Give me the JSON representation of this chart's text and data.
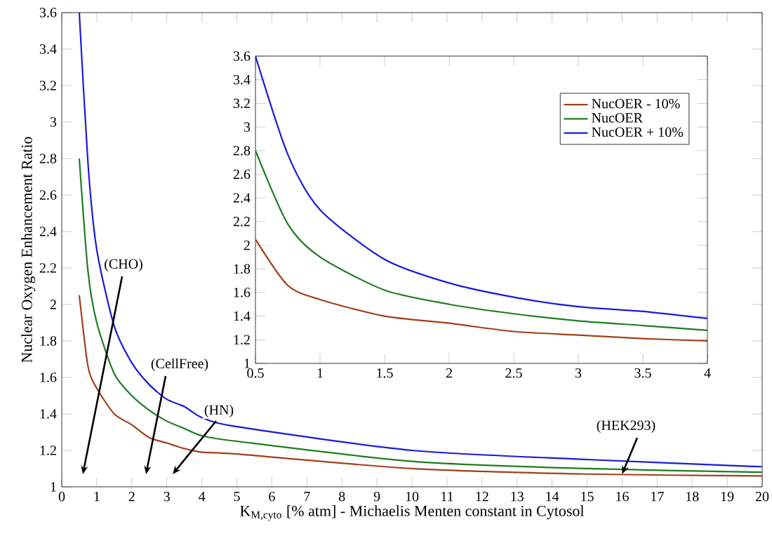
{
  "chart_data": [
    {
      "type": "line",
      "xlabel": "K$_{M,cyto}$ [% atm] - Michaelis Menten constant in Cytosol",
      "ylabel": "Nuclear Oxygen Enhancement Ratio",
      "xlim": [
        0,
        20
      ],
      "ylim": [
        1,
        3.6
      ],
      "xticks": [
        0,
        1,
        2,
        3,
        4,
        5,
        6,
        7,
        8,
        9,
        10,
        11,
        12,
        13,
        14,
        15,
        16,
        17,
        18,
        19,
        20
      ],
      "yticks": [
        1,
        1.2,
        1.4,
        1.6,
        1.8,
        2,
        2.2,
        2.4,
        2.6,
        2.8,
        3,
        3.2,
        3.4,
        3.6
      ],
      "grid": false,
      "legend": false,
      "marker": "none",
      "line_style": "solid",
      "series": [
        {
          "color": "#a0401a",
          "x": [
            0.5,
            0.75,
            1,
            1.5,
            2,
            2.5,
            3,
            3.5,
            4,
            5,
            10,
            15,
            20
          ],
          "values": [
            2.05,
            1.66,
            1.54,
            1.4,
            1.34,
            1.27,
            1.24,
            1.21,
            1.19,
            1.18,
            1.1,
            1.07,
            1.06
          ]
        },
        {
          "color": "#1e7d1e",
          "x": [
            0.5,
            0.75,
            1,
            1.5,
            2,
            2.5,
            3,
            3.5,
            4,
            5,
            10,
            15,
            20
          ],
          "values": [
            2.8,
            2.18,
            1.9,
            1.62,
            1.5,
            1.42,
            1.36,
            1.32,
            1.28,
            1.25,
            1.14,
            1.1,
            1.08
          ]
        },
        {
          "color": "#1a1adc",
          "x": [
            0.5,
            0.75,
            1,
            1.5,
            2,
            2.5,
            3,
            3.5,
            4,
            5,
            10,
            15,
            20
          ],
          "values": [
            3.6,
            2.77,
            2.3,
            1.88,
            1.68,
            1.56,
            1.48,
            1.44,
            1.38,
            1.33,
            1.2,
            1.15,
            1.11
          ]
        }
      ],
      "annotations": [
        "(CHO)",
        "(CellFree)",
        "(HN)",
        {
          "text": "(HEK293)",
          "x": 16,
          "y": 1.07
        }
      ]
    },
    {
      "type": "line",
      "xlim": [
        0.5,
        4
      ],
      "ylim": [
        1,
        3.6
      ],
      "xticks": [
        0.5,
        1,
        1.5,
        2,
        2.5,
        3,
        3.5,
        4
      ],
      "yticks": [
        1,
        1.2,
        1.4,
        1.6,
        1.8,
        2,
        2.2,
        2.4,
        2.6,
        2.8,
        3,
        3.2,
        3.4,
        3.6
      ],
      "grid": false,
      "legend": "top right",
      "marker": "none",
      "line_style": "solid",
      "series": [
        {
          "name": "NucOER - 10%",
          "color": "#a0401a",
          "x": [
            0.5,
            0.75,
            1,
            1.5,
            2,
            2.5,
            3,
            3.5,
            4
          ],
          "values": [
            2.05,
            1.66,
            1.54,
            1.4,
            1.34,
            1.27,
            1.24,
            1.21,
            1.19
          ]
        },
        {
          "name": "NucOER",
          "color": "#1e7d1e",
          "x": [
            0.5,
            0.75,
            1,
            1.5,
            2,
            2.5,
            3,
            3.5,
            4
          ],
          "values": [
            2.8,
            2.18,
            1.9,
            1.62,
            1.5,
            1.42,
            1.36,
            1.32,
            1.28
          ]
        },
        {
          "name": "NucOER + 10%",
          "color": "#1a1adc",
          "x": [
            0.5,
            0.75,
            1,
            1.5,
            2,
            2.5,
            3,
            3.5,
            4
          ],
          "values": [
            3.6,
            2.77,
            2.3,
            1.88,
            1.68,
            1.56,
            1.48,
            1.44,
            1.38
          ]
        }
      ]
    }
  ]
}
